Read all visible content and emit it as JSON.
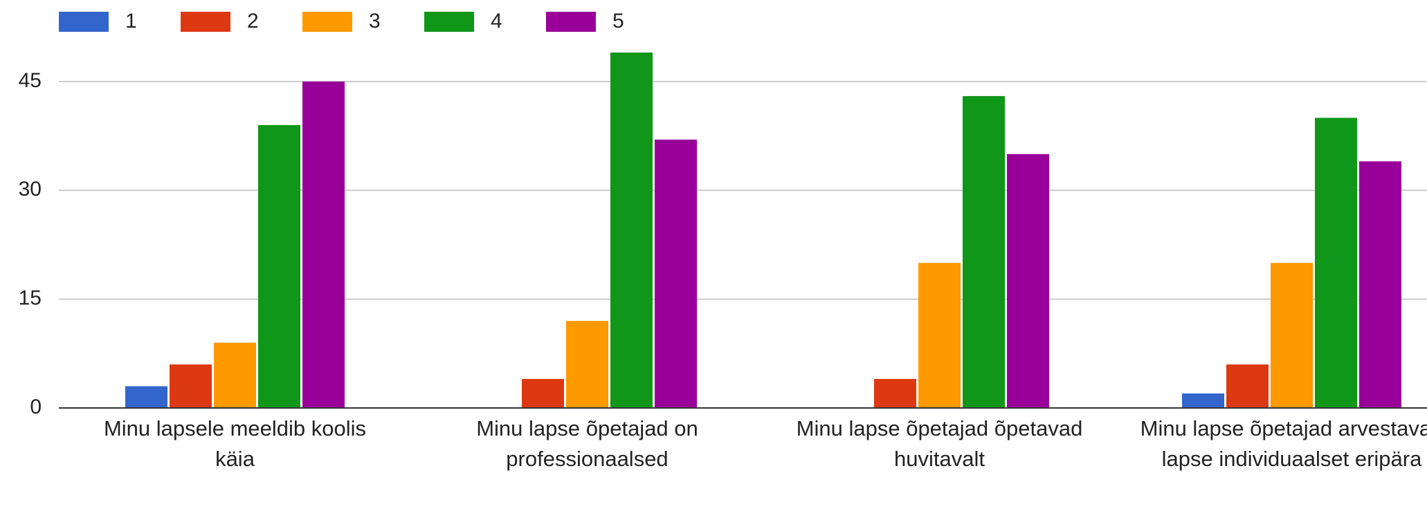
{
  "chart_data": {
    "type": "bar",
    "categories": [
      "Minu lapsele meeldib koolis käia",
      "Minu lapse õpetajad on professionaalsed",
      "Minu lapse õpetajad õpetavad huvitavalt",
      "Minu lapse õpetajad arvestavad lapse individuaalset eripära"
    ],
    "series": [
      {
        "name": "1",
        "color": "#3366cc",
        "values": [
          3,
          0,
          0,
          2
        ]
      },
      {
        "name": "2",
        "color": "#dc3912",
        "values": [
          6,
          4,
          4,
          6
        ]
      },
      {
        "name": "3",
        "color": "#ff9900",
        "values": [
          9,
          12,
          20,
          20
        ]
      },
      {
        "name": "4",
        "color": "#109618",
        "values": [
          39,
          49,
          43,
          40
        ]
      },
      {
        "name": "5",
        "color": "#990099",
        "values": [
          45,
          37,
          35,
          34
        ]
      }
    ],
    "ylim": [
      0,
      50
    ],
    "yticks": [
      0,
      15,
      30,
      45
    ],
    "grid": true,
    "legend": "top"
  }
}
